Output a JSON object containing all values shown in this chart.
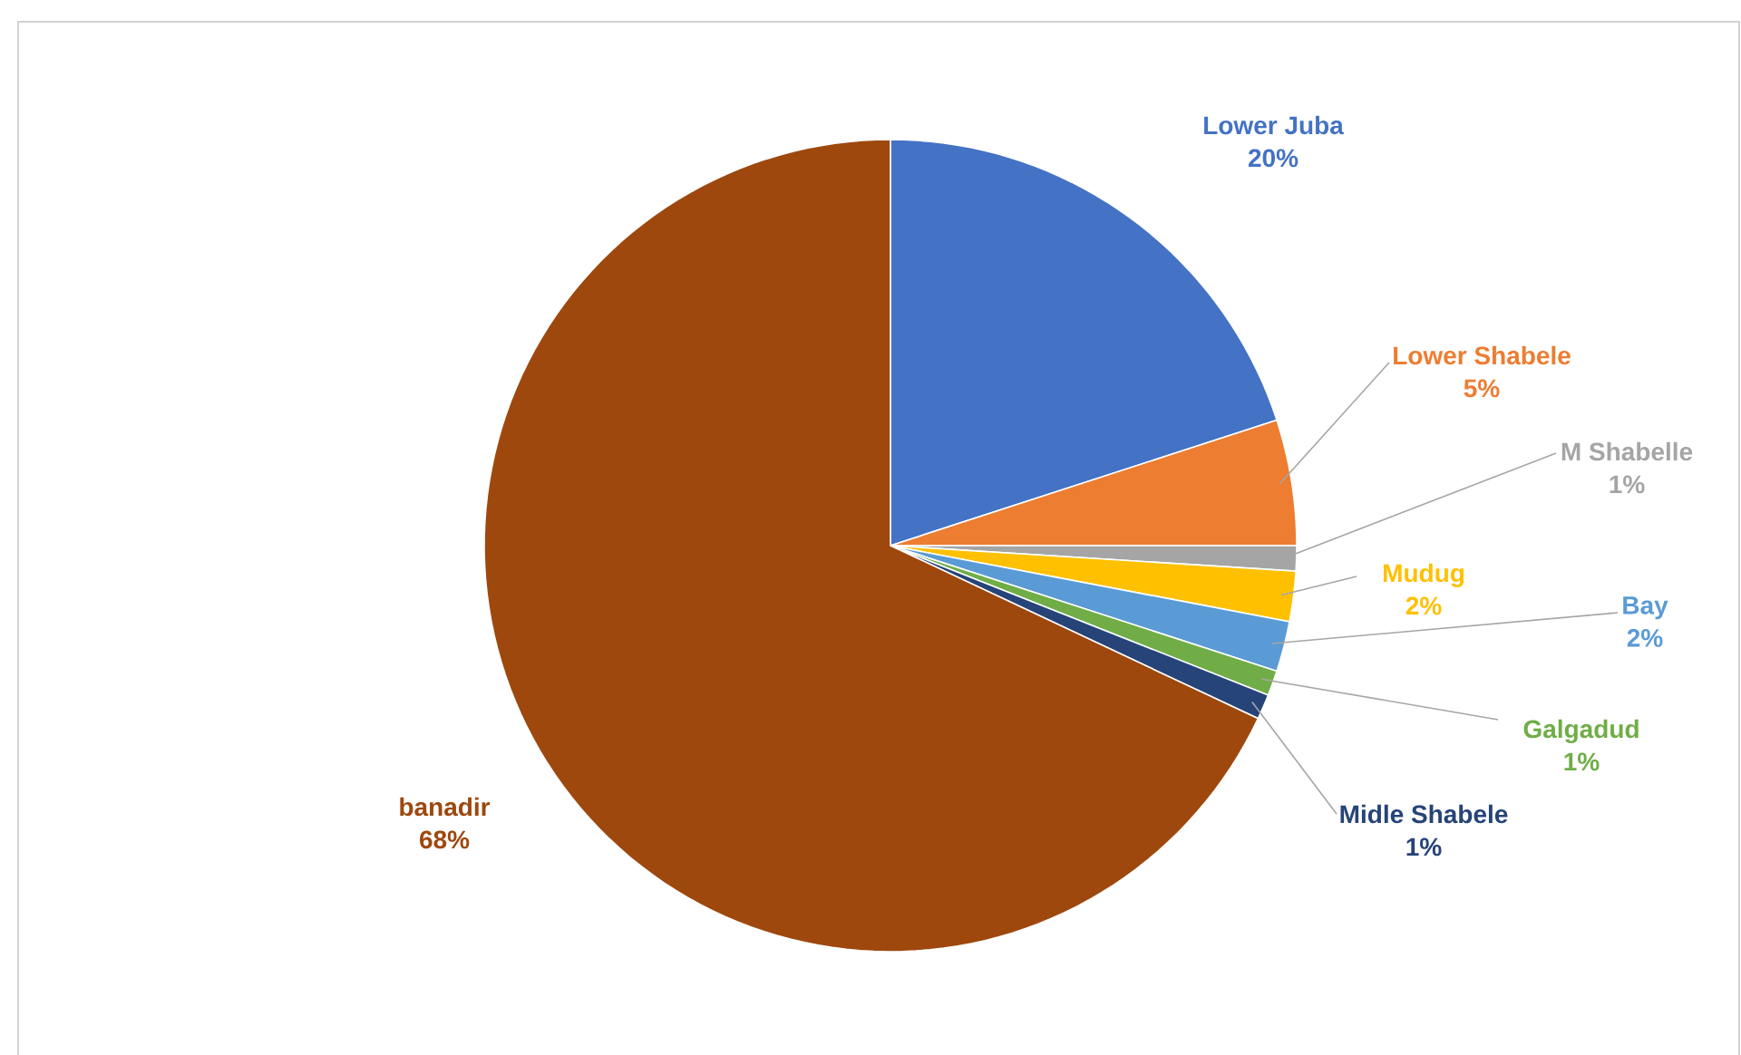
{
  "chart_data": {
    "type": "pie",
    "categories": [
      "Lower Juba",
      "Lower Shabele",
      "M Shabelle",
      "Mudug",
      "Bay",
      "Galgadud",
      "Midle Shabele",
      "banadir"
    ],
    "values": [
      20,
      5,
      1,
      2,
      2,
      1,
      1,
      68
    ],
    "colors": [
      "#4472c4",
      "#ed7d31",
      "#a5a5a5",
      "#ffc000",
      "#5b9bd5",
      "#70ad47",
      "#264478",
      "#9e480e"
    ],
    "value_labels": [
      "20%",
      "5%",
      "1%",
      "2%",
      "2%",
      "1%",
      "1%",
      "68%"
    ]
  }
}
